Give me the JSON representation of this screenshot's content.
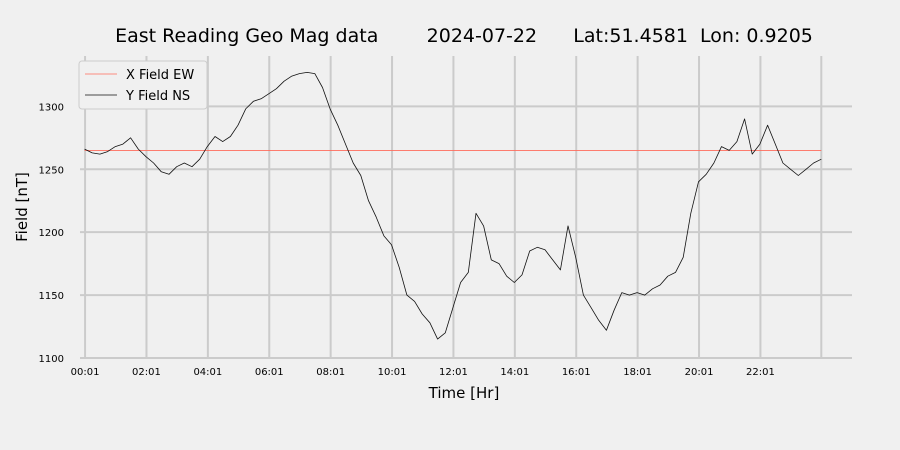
{
  "chart_data": {
    "type": "line",
    "title": "East Reading Geo Mag data        2024-07-22      Lat:51.4581  Lon: 0.9205",
    "xlabel": "Time  [Hr]",
    "ylabel": "Field  [nT]",
    "x_unit": "hours",
    "xlim": [
      -0.8,
      25
    ],
    "ylim": [
      1100,
      1340
    ],
    "x_ticks": [
      {
        "value": 0.0167,
        "label": "00:01"
      },
      {
        "value": 2.0167,
        "label": "02:01"
      },
      {
        "value": 4.0167,
        "label": "04:01"
      },
      {
        "value": 6.0167,
        "label": "06:01"
      },
      {
        "value": 8.0167,
        "label": "08:01"
      },
      {
        "value": 10.0167,
        "label": "10:01"
      },
      {
        "value": 12.0167,
        "label": "12:01"
      },
      {
        "value": 14.0167,
        "label": "14:01"
      },
      {
        "value": 16.0167,
        "label": "16:01"
      },
      {
        "value": 18.0167,
        "label": "18:01"
      },
      {
        "value": 20.0167,
        "label": "20:01"
      },
      {
        "value": 22.0167,
        "label": "22:01"
      }
    ],
    "y_ticks": [
      {
        "value": 1100,
        "label": "1100"
      },
      {
        "value": 1150,
        "label": "1150"
      },
      {
        "value": 1200,
        "label": "1200"
      },
      {
        "value": 1250,
        "label": "1250"
      },
      {
        "value": 1300,
        "label": "1300"
      }
    ],
    "grid": true,
    "legend": "top-left",
    "series": [
      {
        "name": "X Field EW",
        "color": "#ff6b5b",
        "x": [
          0,
          24
        ],
        "y": [
          1265,
          1265
        ]
      },
      {
        "name": "Y Field NS",
        "color": "#111111",
        "x": [
          0,
          0.25,
          0.5,
          0.75,
          1.0,
          1.25,
          1.5,
          1.75,
          2.0,
          2.25,
          2.5,
          2.75,
          3.0,
          3.25,
          3.5,
          3.75,
          4.0,
          4.25,
          4.5,
          4.75,
          5.0,
          5.25,
          5.5,
          5.75,
          6.0,
          6.25,
          6.5,
          6.75,
          7.0,
          7.25,
          7.5,
          7.75,
          8.0,
          8.25,
          8.5,
          8.75,
          9.0,
          9.25,
          9.5,
          9.75,
          10.0,
          10.25,
          10.5,
          10.75,
          11.0,
          11.25,
          11.5,
          11.75,
          12.0,
          12.25,
          12.5,
          12.75,
          13.0,
          13.25,
          13.5,
          13.75,
          14.0,
          14.25,
          14.5,
          14.75,
          15.0,
          15.25,
          15.5,
          15.75,
          16.0,
          16.25,
          16.5,
          16.75,
          17.0,
          17.25,
          17.5,
          17.75,
          18.0,
          18.25,
          18.5,
          18.75,
          19.0,
          19.25,
          19.5,
          19.75,
          20.0,
          20.25,
          20.5,
          20.75,
          21.0,
          21.25,
          21.5,
          21.75,
          22.0,
          22.25,
          22.5,
          22.75,
          23.0,
          23.25,
          23.5,
          23.75,
          24.0
        ],
        "y": [
          1266,
          1263,
          1262,
          1264,
          1268,
          1270,
          1275,
          1266,
          1260,
          1255,
          1248,
          1246,
          1252,
          1255,
          1252,
          1258,
          1268,
          1276,
          1272,
          1276,
          1285,
          1298,
          1304,
          1306,
          1310,
          1314,
          1320,
          1324,
          1326,
          1327,
          1326,
          1315,
          1298,
          1285,
          1270,
          1255,
          1245,
          1225,
          1212,
          1197,
          1190,
          1172,
          1150,
          1145,
          1135,
          1128,
          1115,
          1120,
          1140,
          1160,
          1168,
          1215,
          1205,
          1178,
          1175,
          1165,
          1160,
          1166,
          1185,
          1188,
          1186,
          1178,
          1170,
          1205,
          1180,
          1150,
          1140,
          1130,
          1122,
          1138,
          1152,
          1150,
          1152,
          1150,
          1155,
          1158,
          1165,
          1168,
          1180,
          1215,
          1240,
          1246,
          1255,
          1268,
          1265,
          1272,
          1290,
          1262,
          1270,
          1285,
          1270,
          1255,
          1250,
          1245,
          1250,
          1255,
          1258
        ]
      }
    ]
  }
}
